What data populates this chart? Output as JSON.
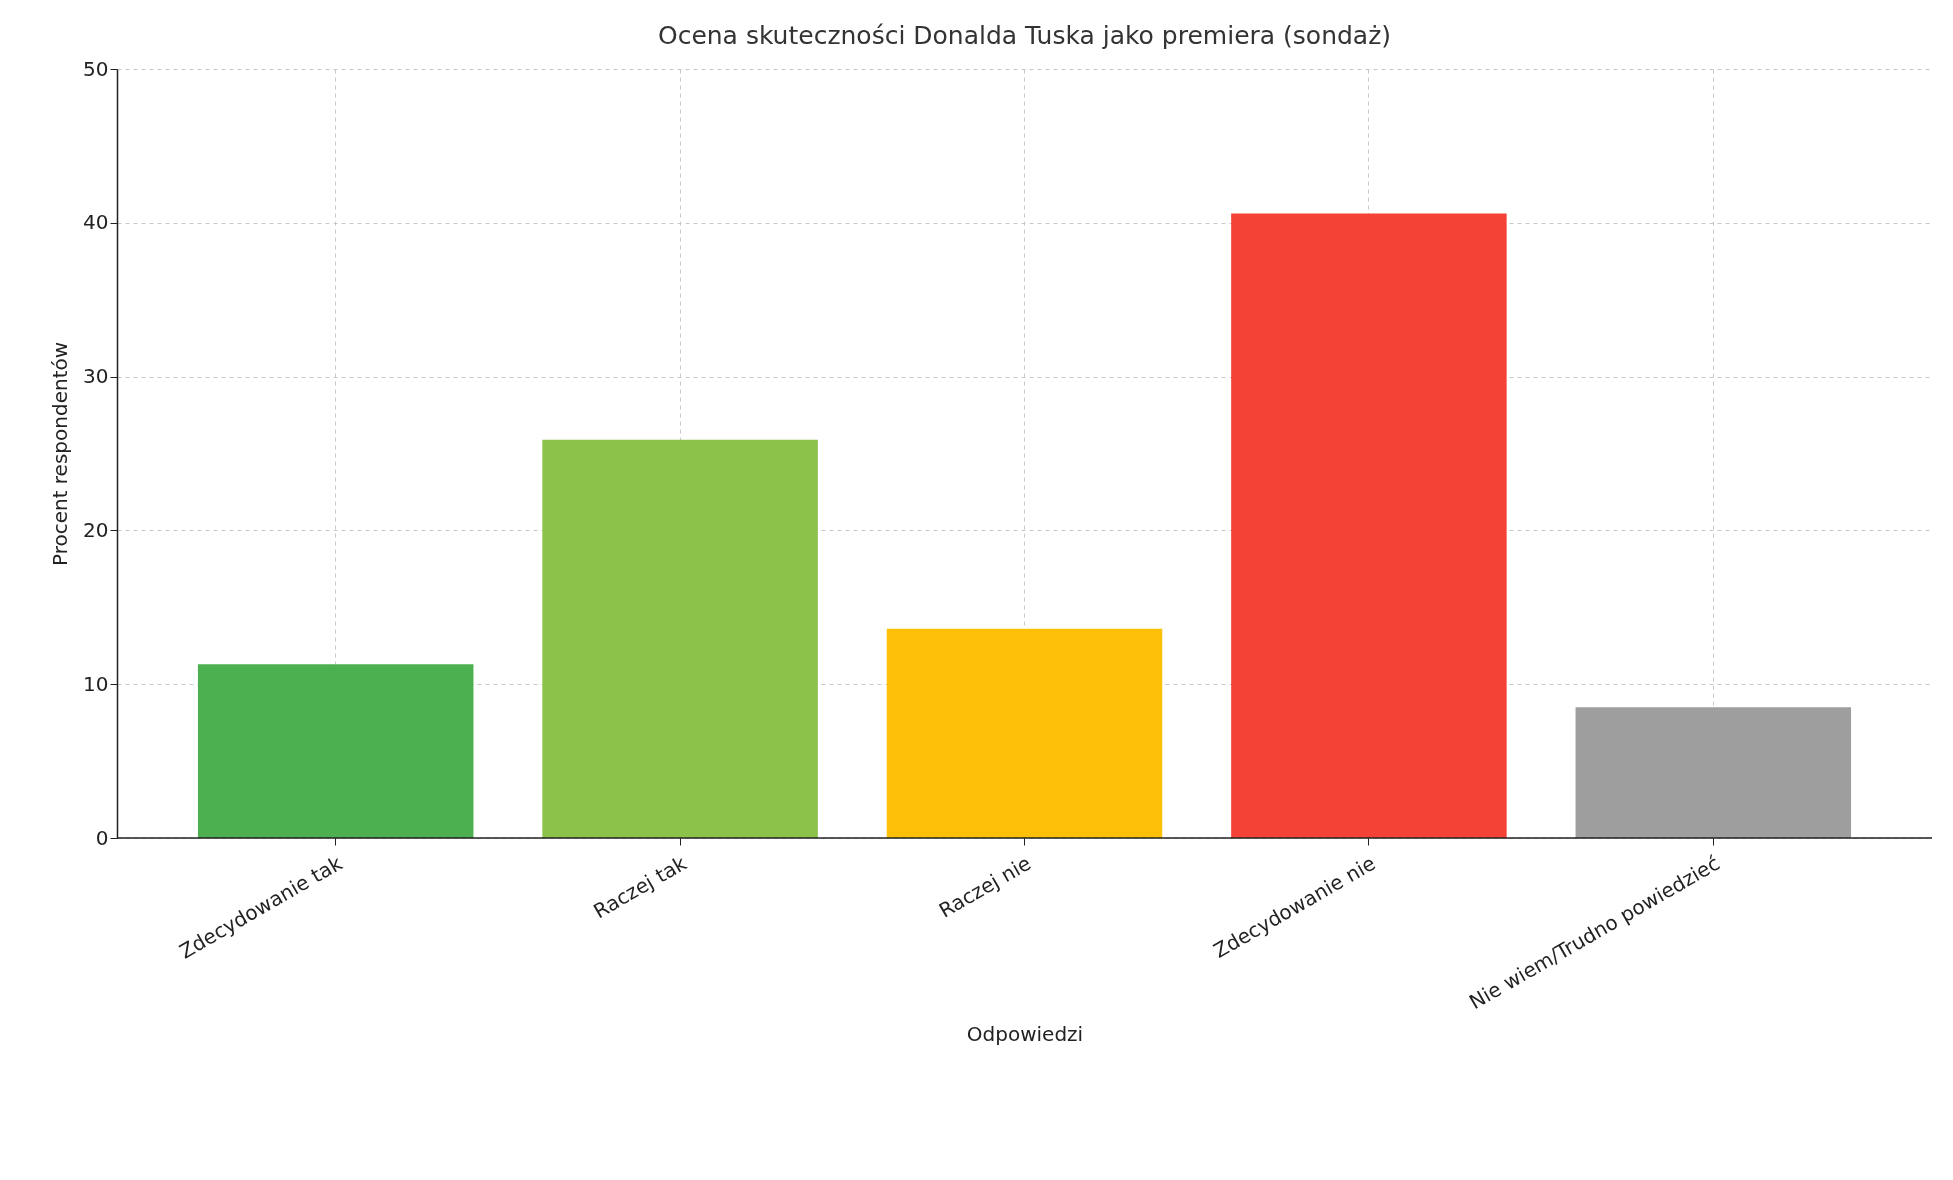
{
  "chart_data": {
    "type": "bar",
    "title": "Ocena skuteczności Donalda Tuska jako premiera (sondaż)",
    "xlabel": "Odpowiedzi",
    "ylabel": "Procent respondentów",
    "categories": [
      "Zdecydowanie tak",
      "Raczej tak",
      "Raczej nie",
      "Zdecydowanie nie",
      "Nie wiem/Trudno powiedzieć"
    ],
    "values": [
      11.3,
      25.9,
      13.6,
      40.6,
      8.5
    ],
    "colors": [
      "#4caf50",
      "#8bc34a",
      "#ffc107",
      "#f44336",
      "#9e9e9e"
    ],
    "ylim": [
      0,
      50
    ],
    "yticks": [
      0,
      10,
      20,
      30,
      40,
      50
    ],
    "grid": true
  }
}
